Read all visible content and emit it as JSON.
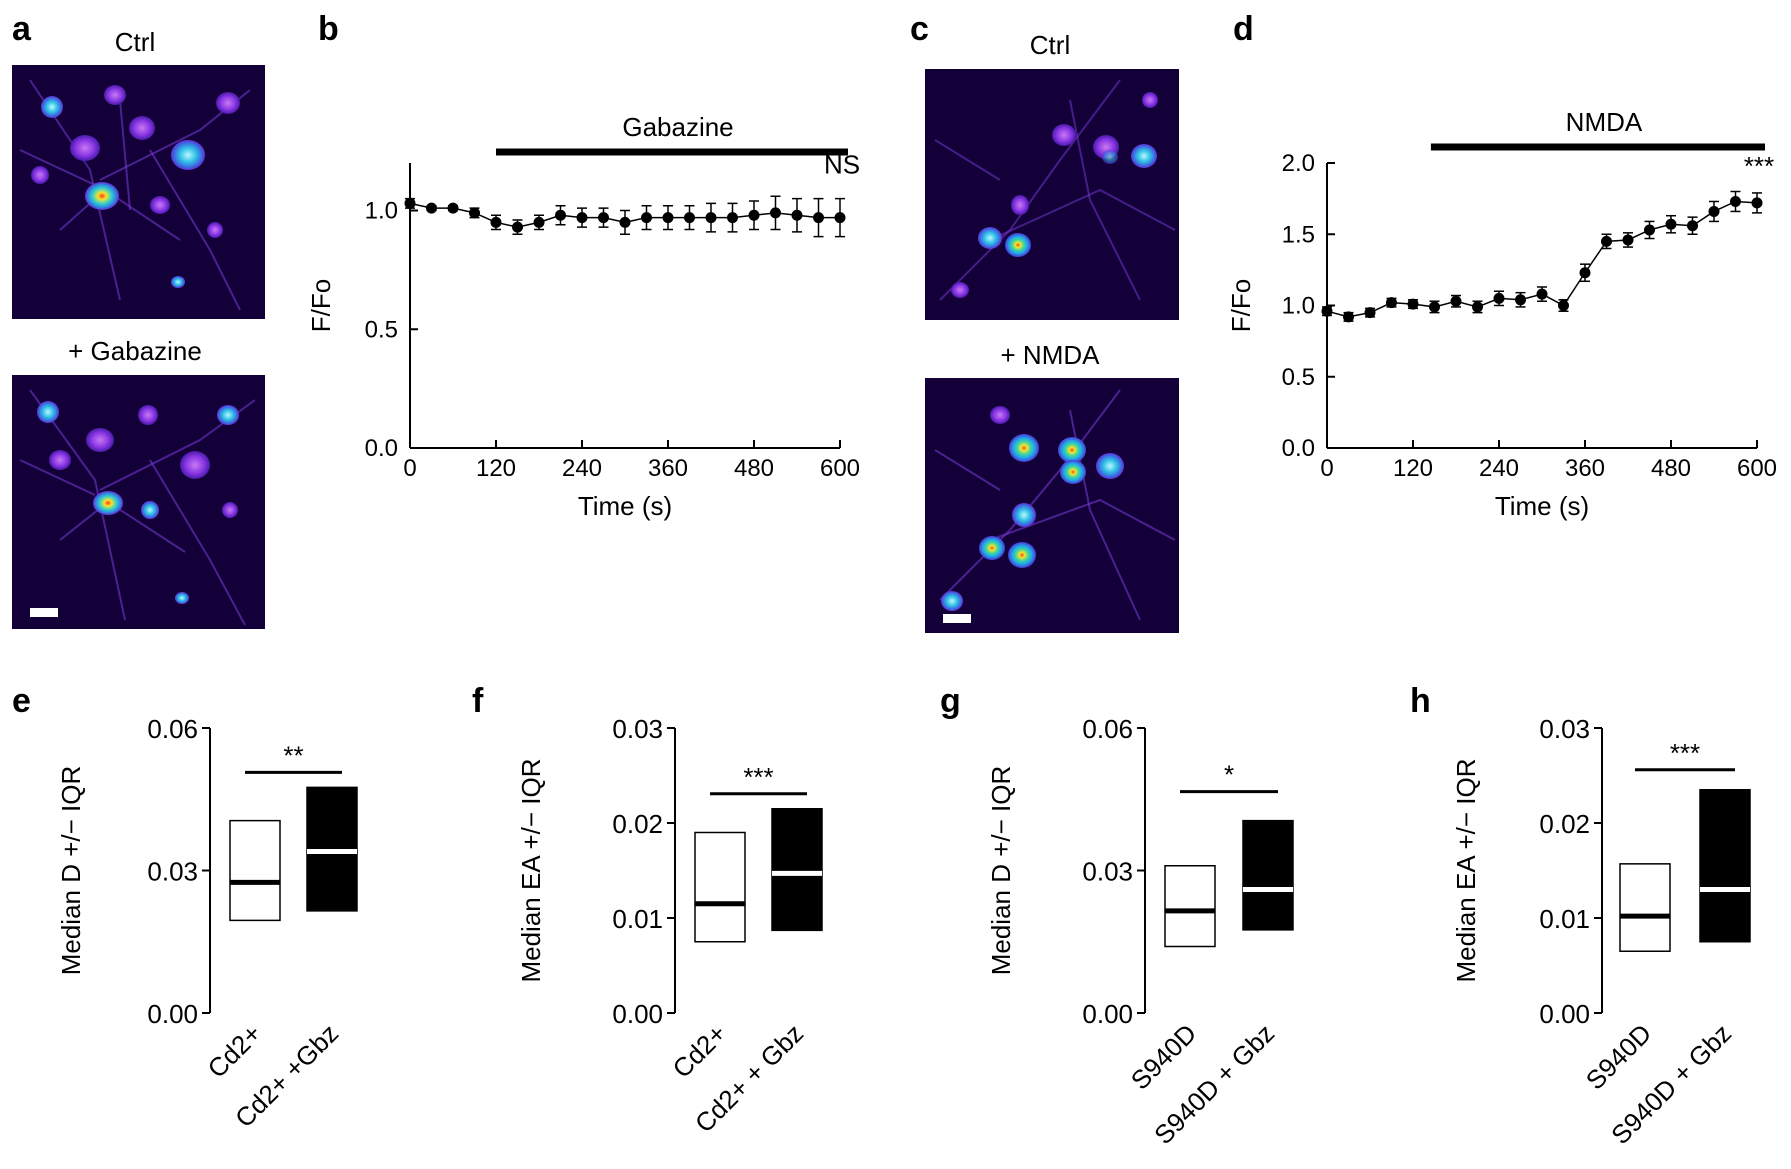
{
  "panels": {
    "a": {
      "letter": "a",
      "top_label": "Ctrl",
      "bottom_label": "+ Gabazine"
    },
    "c": {
      "letter": "c",
      "top_label": "Ctrl",
      "bottom_label": "+ NMDA"
    }
  },
  "chart_data": [
    {
      "id": "b",
      "letter": "b",
      "type": "line",
      "xlabel": "Time (s)",
      "ylabel": "F/Fo",
      "xlim": [
        0,
        600
      ],
      "ylim": [
        0,
        1.2
      ],
      "xticks": [
        0,
        120,
        240,
        360,
        480,
        600
      ],
      "yticks": [
        0.0,
        0.5,
        1.0
      ],
      "ytick_labels": [
        "0.0",
        "0.5",
        "1.0"
      ],
      "bar_label": "Gabazine",
      "bar_range": [
        120,
        600
      ],
      "significance": "NS",
      "x": [
        0,
        30,
        60,
        90,
        120,
        150,
        180,
        210,
        240,
        270,
        300,
        330,
        360,
        390,
        420,
        450,
        480,
        510,
        540,
        570,
        600
      ],
      "y": [
        1.03,
        1.01,
        1.01,
        0.99,
        0.95,
        0.93,
        0.95,
        0.98,
        0.97,
        0.97,
        0.95,
        0.97,
        0.97,
        0.97,
        0.97,
        0.97,
        0.98,
        0.99,
        0.98,
        0.97,
        0.97
      ],
      "err": [
        0.02,
        0.01,
        0.01,
        0.02,
        0.03,
        0.03,
        0.03,
        0.04,
        0.04,
        0.04,
        0.05,
        0.05,
        0.05,
        0.05,
        0.06,
        0.06,
        0.06,
        0.07,
        0.07,
        0.08,
        0.08
      ]
    },
    {
      "id": "d",
      "letter": "d",
      "type": "line",
      "xlabel": "Time (s)",
      "ylabel": "F/Fo",
      "xlim": [
        0,
        600
      ],
      "ylim": [
        0,
        2.0
      ],
      "xticks": [
        0,
        120,
        240,
        360,
        480,
        600
      ],
      "yticks": [
        0.0,
        0.5,
        1.0,
        1.5,
        2.0
      ],
      "ytick_labels": [
        "0.0",
        "0.5",
        "1.0",
        "1.5",
        "2.0"
      ],
      "bar_label": "NMDA",
      "bar_range": [
        145,
        600
      ],
      "significance": "***",
      "x": [
        0,
        30,
        60,
        90,
        120,
        150,
        180,
        210,
        240,
        270,
        300,
        330,
        360,
        390,
        420,
        450,
        480,
        510,
        540,
        570,
        600
      ],
      "y": [
        0.96,
        0.92,
        0.95,
        1.02,
        1.01,
        0.99,
        1.03,
        0.99,
        1.05,
        1.04,
        1.08,
        1.0,
        1.23,
        1.45,
        1.46,
        1.53,
        1.57,
        1.56,
        1.66,
        1.73,
        1.72
      ],
      "err": [
        0.03,
        0.03,
        0.03,
        0.03,
        0.03,
        0.04,
        0.04,
        0.04,
        0.05,
        0.05,
        0.05,
        0.04,
        0.06,
        0.05,
        0.05,
        0.06,
        0.06,
        0.06,
        0.07,
        0.07,
        0.07
      ]
    },
    {
      "id": "e",
      "letter": "e",
      "type": "box",
      "ylabel": "Median D +/− IQR",
      "ylim": [
        0,
        0.06
      ],
      "yticks": [
        0.0,
        0.03,
        0.06
      ],
      "ytick_labels": [
        "0.00",
        "0.03",
        "0.06"
      ],
      "categories": [
        "Cd2+",
        "Cd2+ +Gbz"
      ],
      "boxes": [
        {
          "q1": 0.0195,
          "median": 0.0275,
          "q3": 0.0405
        },
        {
          "q1": 0.0215,
          "median": 0.034,
          "q3": 0.0475
        }
      ],
      "significance": "**"
    },
    {
      "id": "f",
      "letter": "f",
      "type": "box",
      "ylabel": "Median EA +/− IQR",
      "ylim": [
        0,
        0.03
      ],
      "yticks": [
        0.0,
        0.01,
        0.02,
        0.03
      ],
      "ytick_labels": [
        "0.00",
        "0.01",
        "0.02",
        "0.03"
      ],
      "categories": [
        "Cd2+",
        "Cd2+ + Gbz"
      ],
      "boxes": [
        {
          "q1": 0.0075,
          "median": 0.0115,
          "q3": 0.019
        },
        {
          "q1": 0.0087,
          "median": 0.0147,
          "q3": 0.0215
        }
      ],
      "significance": "***"
    },
    {
      "id": "g",
      "letter": "g",
      "type": "box",
      "ylabel": "Median D +/− IQR",
      "ylim": [
        0,
        0.06
      ],
      "yticks": [
        0.0,
        0.03,
        0.06
      ],
      "ytick_labels": [
        "0.00",
        "0.03",
        "0.06"
      ],
      "categories": [
        "S940D",
        "S940D + Gbz"
      ],
      "boxes": [
        {
          "q1": 0.014,
          "median": 0.0215,
          "q3": 0.031
        },
        {
          "q1": 0.0175,
          "median": 0.026,
          "q3": 0.0405
        }
      ],
      "significance": "*"
    },
    {
      "id": "h",
      "letter": "h",
      "type": "box",
      "ylabel": "Median EA +/− IQR",
      "ylim": [
        0,
        0.03
      ],
      "yticks": [
        0.0,
        0.01,
        0.02,
        0.03
      ],
      "ytick_labels": [
        "0.00",
        "0.01",
        "0.02",
        "0.03"
      ],
      "categories": [
        "S940D",
        "S940D + Gbz"
      ],
      "boxes": [
        {
          "q1": 0.0065,
          "median": 0.0102,
          "q3": 0.0157
        },
        {
          "q1": 0.0075,
          "median": 0.013,
          "q3": 0.0235
        }
      ],
      "significance": "***"
    }
  ]
}
